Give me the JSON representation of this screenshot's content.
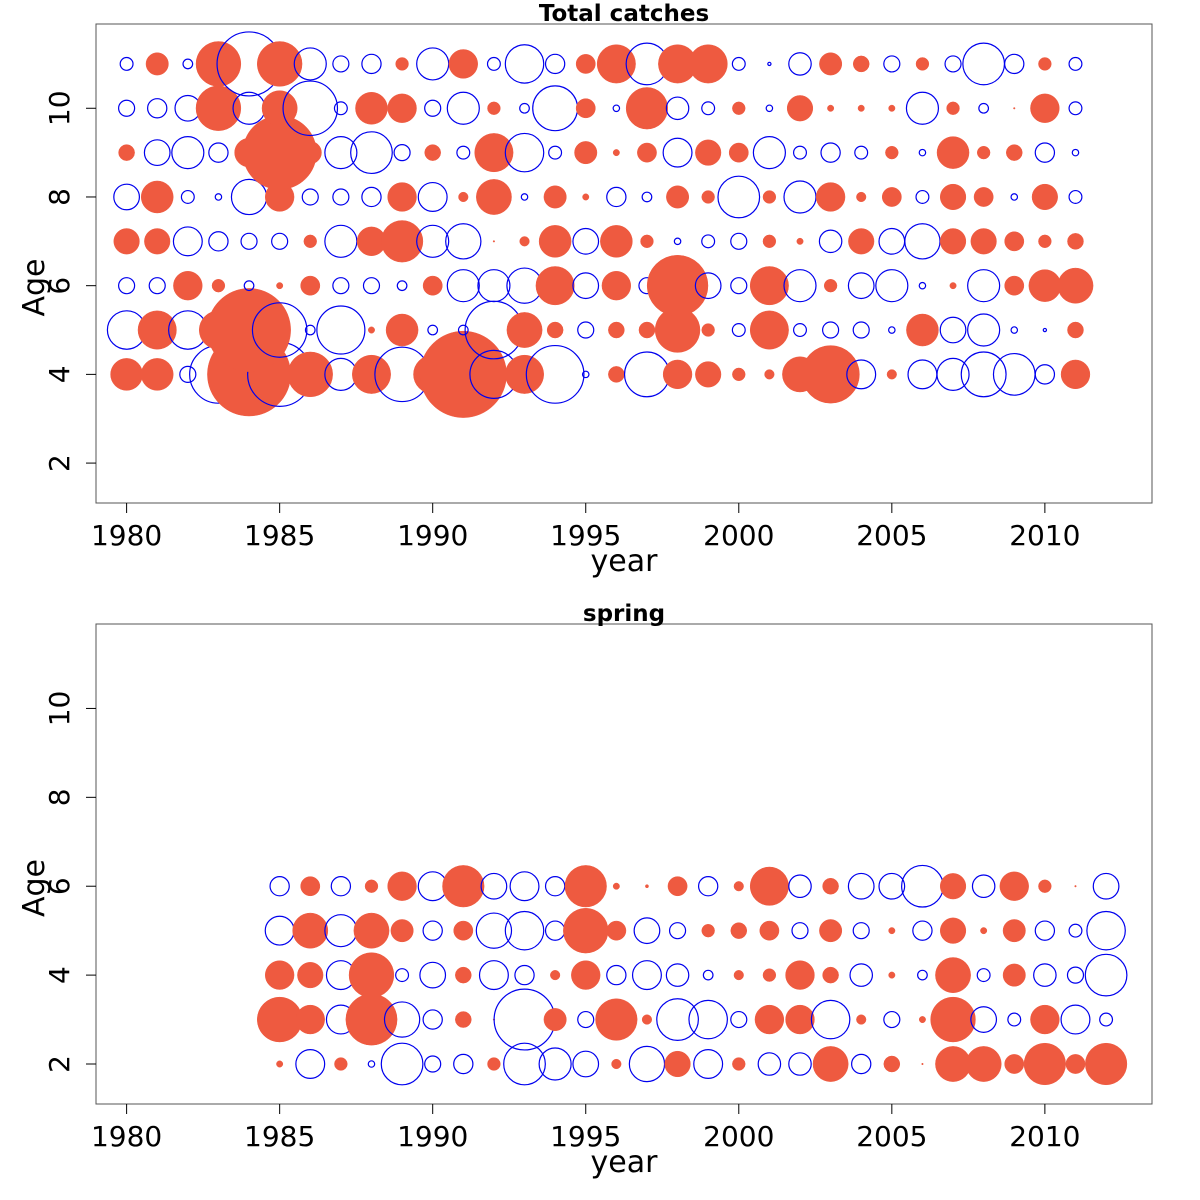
{
  "chart_data": [
    {
      "type": "bubble",
      "title": "Total catches",
      "xlabel": "year",
      "ylabel": "Age",
      "xlim": [
        1979,
        2013.5
      ],
      "ylim": [
        1.1,
        11.9
      ],
      "xticks": [
        "1980",
        "1985",
        "1990",
        "1995",
        "2000",
        "2005",
        "2010"
      ],
      "yticks": [
        "2",
        "4",
        "6",
        "8",
        "10"
      ],
      "grid": false,
      "colors": {
        "positive": "#ee5a40",
        "negative": "#0000ee"
      },
      "years": [
        1980,
        1981,
        1982,
        1983,
        1984,
        1985,
        1986,
        1987,
        1988,
        1989,
        1990,
        1991,
        1992,
        1993,
        1994,
        1995,
        1996,
        1997,
        1998,
        1999,
        2000,
        2001,
        2002,
        2003,
        2004,
        2005,
        2006,
        2007,
        2008,
        2009,
        2010,
        2011
      ],
      "ages": [
        4,
        5,
        6,
        7,
        8,
        9,
        10,
        11
      ],
      "residuals": [
        [
          1.0,
          1.0,
          -0.5,
          -1.8,
          2.6,
          -2.0,
          1.4,
          -1.0,
          1.2,
          -1.7,
          1.2,
          2.7,
          -1.5,
          1.2,
          -1.8,
          -0.2,
          0.5,
          -1.4,
          0.9,
          0.8,
          0.4,
          0.3,
          1.1,
          1.8,
          -0.9,
          0.3,
          -0.9,
          -1.0,
          -1.4,
          -1.3,
          -0.6,
          0.9
        ],
        [
          -1.2,
          1.2,
          -1.2,
          1.2,
          2.6,
          -1.7,
          -0.3,
          -1.5,
          0.2,
          1.0,
          -0.3,
          -0.3,
          -1.8,
          1.1,
          0.5,
          -0.5,
          0.5,
          0.5,
          1.4,
          0.4,
          -0.4,
          1.2,
          -0.4,
          -0.5,
          -0.5,
          -0.2,
          1.0,
          -0.8,
          -1.0,
          -0.2,
          -0.1,
          0.5
        ],
        [
          -0.5,
          -0.5,
          0.9,
          0.4,
          -0.3,
          0.2,
          0.6,
          -0.5,
          -0.5,
          -0.3,
          0.6,
          -1.0,
          -1.0,
          -1.1,
          1.2,
          -0.8,
          0.9,
          -0.5,
          1.9,
          -0.8,
          -0.5,
          1.2,
          -1.0,
          0.4,
          -0.8,
          -1.0,
          -0.2,
          0.2,
          -1.0,
          0.6,
          1.0,
          1.1
        ],
        [
          0.8,
          0.8,
          -0.9,
          -0.6,
          -0.5,
          -0.5,
          0.4,
          -1.0,
          0.9,
          1.3,
          -1.0,
          -1.1,
          0.05,
          0.3,
          1.0,
          -0.8,
          1.0,
          0.4,
          -0.2,
          -0.4,
          -0.5,
          0.4,
          0.2,
          -0.7,
          0.8,
          -0.8,
          -1.1,
          0.8,
          0.8,
          0.6,
          0.4,
          0.5
        ],
        [
          -0.8,
          1.0,
          -0.4,
          -0.2,
          -1.1,
          0.9,
          -0.5,
          -0.5,
          -0.6,
          0.9,
          -0.9,
          0.3,
          1.1,
          -0.2,
          0.7,
          0.2,
          -0.6,
          -0.3,
          0.7,
          0.4,
          -1.3,
          0.4,
          -1.0,
          0.9,
          0.3,
          0.6,
          -0.4,
          0.8,
          0.6,
          -0.2,
          0.8,
          -0.4
        ],
        [
          0.5,
          -0.8,
          -1.0,
          -0.6,
          0.9,
          2.3,
          0.7,
          -1.0,
          -1.3,
          -0.5,
          0.5,
          -0.4,
          1.2,
          -1.2,
          -0.4,
          0.7,
          0.2,
          0.6,
          -0.9,
          0.8,
          0.6,
          -1.0,
          -0.4,
          -0.6,
          -0.4,
          0.4,
          -0.2,
          1.0,
          0.4,
          0.5,
          -0.6,
          -0.2
        ],
        [
          -0.5,
          -0.6,
          -0.8,
          1.4,
          -1.0,
          1.1,
          -1.7,
          -0.4,
          1.0,
          0.9,
          -0.5,
          -1.0,
          0.4,
          -0.3,
          -1.4,
          0.6,
          -0.2,
          1.3,
          -0.7,
          -0.4,
          0.4,
          -0.2,
          0.8,
          0.2,
          0.2,
          0.2,
          -1.0,
          0.4,
          -0.3,
          0.05,
          0.9,
          -0.4
        ],
        [
          -0.4,
          0.7,
          -0.3,
          1.4,
          -2.0,
          1.4,
          -1.0,
          -0.5,
          -0.6,
          0.4,
          -1.0,
          0.9,
          -0.4,
          -1.2,
          -0.6,
          0.6,
          1.2,
          -1.3,
          1.2,
          1.2,
          -0.4,
          -0.1,
          -0.7,
          0.7,
          0.5,
          -0.5,
          0.4,
          -0.5,
          -1.3,
          -0.6,
          0.4,
          -0.4
        ]
      ]
    },
    {
      "type": "bubble",
      "title": "spring",
      "xlabel": "year",
      "ylabel": "Age",
      "xlim": [
        1979,
        2013.5
      ],
      "ylim": [
        1.1,
        11.9
      ],
      "xticks": [
        "1980",
        "1985",
        "1990",
        "1995",
        "2000",
        "2005",
        "2010"
      ],
      "yticks": [
        "2",
        "4",
        "6",
        "8",
        "10"
      ],
      "grid": false,
      "colors": {
        "positive": "#ee5a40",
        "negative": "#0000ee"
      },
      "years": [
        1985,
        1986,
        1987,
        1988,
        1989,
        1990,
        1991,
        1992,
        1993,
        1994,
        1995,
        1996,
        1997,
        1998,
        1999,
        2000,
        2001,
        2002,
        2003,
        2004,
        2005,
        2006,
        2007,
        2008,
        2009,
        2010,
        2011,
        2012
      ],
      "ages": [
        2,
        3,
        4,
        5,
        6
      ],
      "residuals": [
        [
          0.2,
          -0.9,
          0.4,
          -0.2,
          -1.3,
          -0.5,
          -0.6,
          0.4,
          -1.3,
          -1.0,
          -0.8,
          0.3,
          -1.1,
          0.8,
          -0.9,
          0.4,
          -0.7,
          -0.7,
          1.1,
          -0.6,
          0.5,
          0.05,
          1.1,
          1.1,
          0.6,
          1.3,
          0.6,
          1.3
        ],
        [
          1.4,
          0.9,
          -0.9,
          1.6,
          -1.1,
          -0.6,
          0.5,
          0.05,
          -1.9,
          0.7,
          -0.5,
          1.3,
          0.3,
          -1.3,
          -1.2,
          -0.5,
          0.9,
          0.9,
          -1.2,
          0.3,
          -0.5,
          0.2,
          1.4,
          -0.8,
          -0.4,
          0.9,
          -0.9,
          -0.4
        ],
        [
          0.9,
          0.8,
          -0.9,
          1.4,
          -0.4,
          -0.8,
          0.5,
          -0.9,
          -0.6,
          0.3,
          0.9,
          -0.6,
          -0.9,
          -0.7,
          -0.3,
          0.3,
          0.4,
          0.9,
          0.5,
          -0.7,
          0.2,
          -0.3,
          1.1,
          -0.4,
          0.7,
          -0.7,
          -0.5,
          -1.3
        ],
        [
          -0.9,
          1.1,
          -1.0,
          1.1,
          0.7,
          -0.6,
          0.6,
          -1.1,
          -1.2,
          -0.6,
          1.4,
          0.6,
          -0.8,
          -0.5,
          0.4,
          0.5,
          0.6,
          -0.5,
          0.7,
          -0.5,
          0.2,
          -0.6,
          0.8,
          0.2,
          0.7,
          -0.6,
          -0.4,
          -1.2
        ],
        [
          -0.6,
          0.6,
          -0.6,
          0.4,
          0.9,
          -0.9,
          1.3,
          -0.8,
          -0.9,
          -0.6,
          1.3,
          0.2,
          0.1,
          0.6,
          -0.6,
          0.3,
          1.2,
          -0.7,
          0.5,
          -0.8,
          -0.8,
          -1.3,
          0.8,
          -0.7,
          0.9,
          0.4,
          0.05,
          -0.8
        ]
      ]
    }
  ]
}
